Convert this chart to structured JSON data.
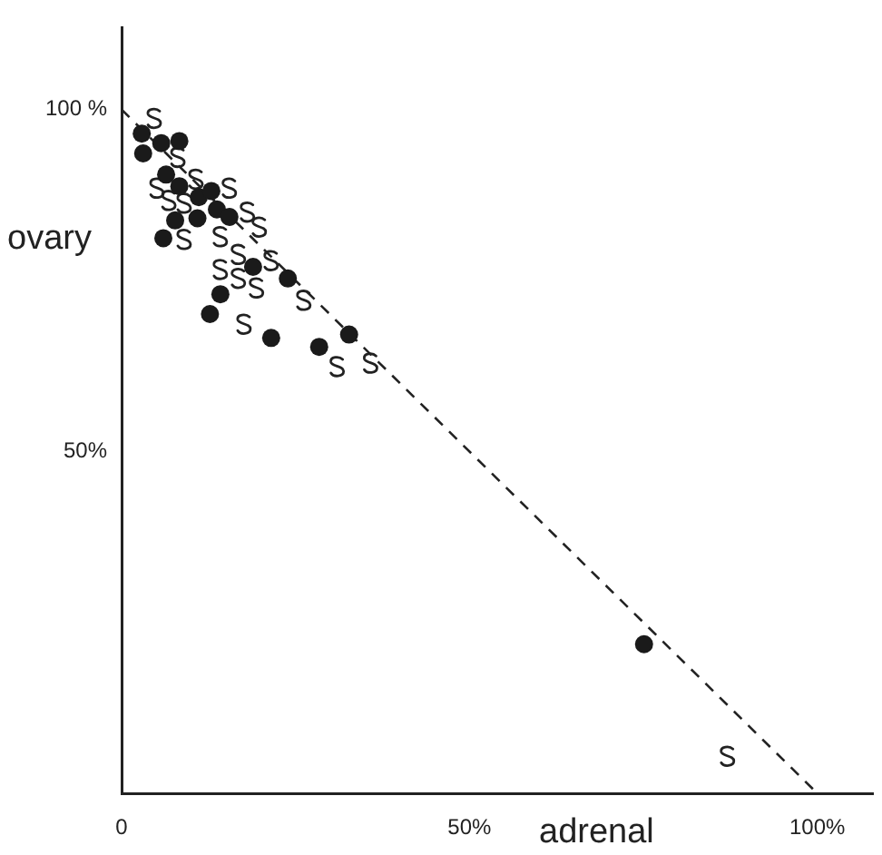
{
  "chart_data": {
    "type": "scatter",
    "xlabel": "adrenal",
    "ylabel": "ovary",
    "xlim": [
      0,
      108
    ],
    "ylim": [
      0,
      112
    ],
    "xticks": [
      {
        "value": 0,
        "label": "0"
      },
      {
        "value": 50,
        "label": "50%"
      },
      {
        "value": 100,
        "label": "100%"
      }
    ],
    "yticks": [
      {
        "value": 50,
        "label": "50%"
      },
      {
        "value": 100,
        "label": "100 %"
      }
    ],
    "grid": false,
    "legend": false,
    "series": [
      {
        "color": "#1a1a1a",
        "marker": "circle",
        "x": [
          2.9,
          3.1,
          5.7,
          8.3,
          6.4,
          8.3,
          11.1,
          12.9,
          13.7,
          15.5,
          7.7,
          10.9,
          6.0,
          18.9,
          23.9,
          14.2,
          12.7,
          21.5,
          28.4,
          32.7,
          75.1
        ],
        "values": [
          96.5,
          93.6,
          95.1,
          95.4,
          90.5,
          88.8,
          87.2,
          88.1,
          85.4,
          84.3,
          83.8,
          84.1,
          81.2,
          77.0,
          75.3,
          73.0,
          70.1,
          66.6,
          65.3,
          67.1,
          21.8
        ]
      },
      {
        "color": "#222222",
        "x": [
          4.7,
          8.1,
          5.1,
          6.8,
          9.0,
          10.7,
          15.5,
          18.1,
          19.8,
          9.0,
          14.2,
          16.8,
          21.5,
          14.2,
          16.8,
          19.4,
          26.2,
          17.6,
          31.0,
          35.8,
          87.1
        ],
        "values": [
          98.7,
          93.0,
          88.5,
          86.7,
          86.3,
          89.8,
          88.5,
          85.0,
          82.8,
          81.0,
          81.4,
          78.8,
          77.9,
          76.6,
          75.3,
          73.9,
          72.1,
          68.6,
          62.4,
          62.9,
          5.4
        ]
      },
      {
        "type": "line",
        "color": "#222222",
        "marker": "none",
        "line_style": "dashed",
        "x": [
          0,
          100
        ],
        "values": [
          100,
          0
        ]
      }
    ]
  }
}
